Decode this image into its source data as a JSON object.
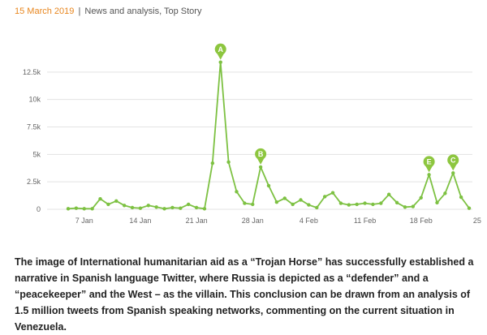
{
  "meta": {
    "date": "15 March 2019",
    "separator": "|",
    "categories": "News and analysis, Top Story"
  },
  "chart_data": {
    "type": "line",
    "title": "",
    "xlabel": "",
    "ylabel": "",
    "ylim": [
      0,
      15000
    ],
    "yticks": [
      0,
      2500,
      5000,
      7500,
      10000,
      12500
    ],
    "ytick_labels": [
      "0",
      "2.5k",
      "5k",
      "7.5k",
      "10k",
      "12.5k"
    ],
    "xticks": [
      {
        "index": 2,
        "label": "7 Jan"
      },
      {
        "index": 9,
        "label": "14 Jan"
      },
      {
        "index": 16,
        "label": "21 Jan"
      },
      {
        "index": 23,
        "label": "28 Jan"
      },
      {
        "index": 30,
        "label": "4 Feb"
      },
      {
        "index": 37,
        "label": "11 Feb"
      },
      {
        "index": 44,
        "label": "18 Feb"
      },
      {
        "index": 51,
        "label": "25"
      }
    ],
    "grid": true,
    "series_color": "#7dc142",
    "values": [
      50,
      100,
      50,
      50,
      950,
      450,
      750,
      350,
      150,
      100,
      350,
      200,
      50,
      150,
      100,
      450,
      150,
      50,
      4200,
      13400,
      4300,
      1600,
      550,
      450,
      3850,
      2150,
      650,
      1000,
      450,
      850,
      400,
      150,
      1150,
      1500,
      550,
      400,
      450,
      550,
      450,
      550,
      1350,
      600,
      200,
      250,
      1050,
      3150,
      600,
      1450,
      3300,
      1100,
      100
    ],
    "annotations": [
      {
        "label": "A",
        "index": 19
      },
      {
        "label": "B",
        "index": 24
      },
      {
        "label": "E",
        "index": 45
      },
      {
        "label": "C",
        "index": 48
      }
    ]
  },
  "summary": "The image of International humanitarian aid as a “Trojan Horse” has successfully established a narrative in Spanish language Twitter, where Russia is depicted as a “defender” and a “peacekeeper” and the West – as the villain. This conclusion can be drawn from an analysis of 1.5 million tweets from Spanish speaking networks, commenting on the current situation in Venezuela."
}
